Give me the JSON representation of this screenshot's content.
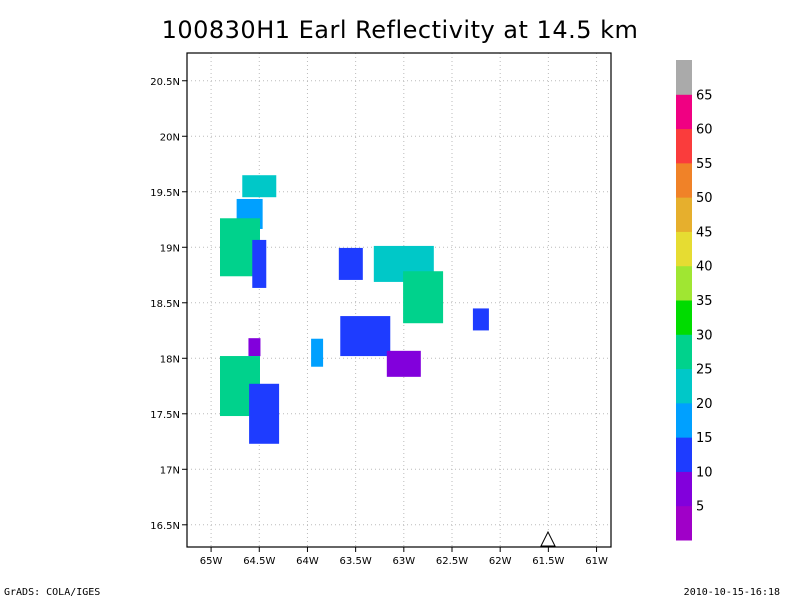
{
  "chart_data": {
    "type": "heatmap",
    "title": "100830H1 Earl Reflectivity at 14.5 km",
    "x_ticks": [
      "65W",
      "64.5W",
      "64W",
      "63.5W",
      "63W",
      "62.5W",
      "62W",
      "61.5W",
      "61W"
    ],
    "y_ticks": [
      "16.5N",
      "17N",
      "17.5N",
      "18N",
      "18.5N",
      "19N",
      "19.5N",
      "20N",
      "20.5N"
    ],
    "xlim": [
      -65.25,
      -60.85
    ],
    "ylim": [
      16.3,
      20.75
    ],
    "grid": "dotted",
    "colorbar": {
      "levels": [
        "5",
        "10",
        "15",
        "20",
        "25",
        "30",
        "35",
        "40",
        "45",
        "50",
        "55",
        "60",
        "65"
      ],
      "colors": [
        "#a000c8",
        "#8200dc",
        "#1e3cff",
        "#00a0ff",
        "#00c8c8",
        "#00d28c",
        "#00dc00",
        "#a0e632",
        "#e6dc32",
        "#e6af2d",
        "#f08228",
        "#fa3c3c",
        "#f00082",
        "#aaaaaa"
      ]
    },
    "cells": [
      {
        "lon": -64.5,
        "lat": 19.55,
        "dbz": 22
      },
      {
        "lon": -64.6,
        "lat": 19.3,
        "dbz": 17
      },
      {
        "lon": -64.7,
        "lat": 19.0,
        "dbz": 27
      },
      {
        "lon": -64.5,
        "lat": 18.85,
        "dbz": 12
      },
      {
        "lon": -63.55,
        "lat": 18.85,
        "dbz": 12
      },
      {
        "lon": -63.0,
        "lat": 18.85,
        "dbz": 22
      },
      {
        "lon": -62.8,
        "lat": 18.55,
        "dbz": 27
      },
      {
        "lon": -63.4,
        "lat": 18.2,
        "dbz": 12
      },
      {
        "lon": -63.0,
        "lat": 17.95,
        "dbz": 7
      },
      {
        "lon": -62.2,
        "lat": 18.35,
        "dbz": 12
      },
      {
        "lon": -63.9,
        "lat": 18.05,
        "dbz": 17
      },
      {
        "lon": -64.55,
        "lat": 18.1,
        "dbz": 7
      },
      {
        "lon": -64.7,
        "lat": 17.75,
        "dbz": 27
      },
      {
        "lon": -64.45,
        "lat": 17.5,
        "dbz": 12
      }
    ]
  },
  "footer": {
    "credit": "GrADS: COLA/IGES",
    "timestamp": "2010-10-15-16:18"
  }
}
